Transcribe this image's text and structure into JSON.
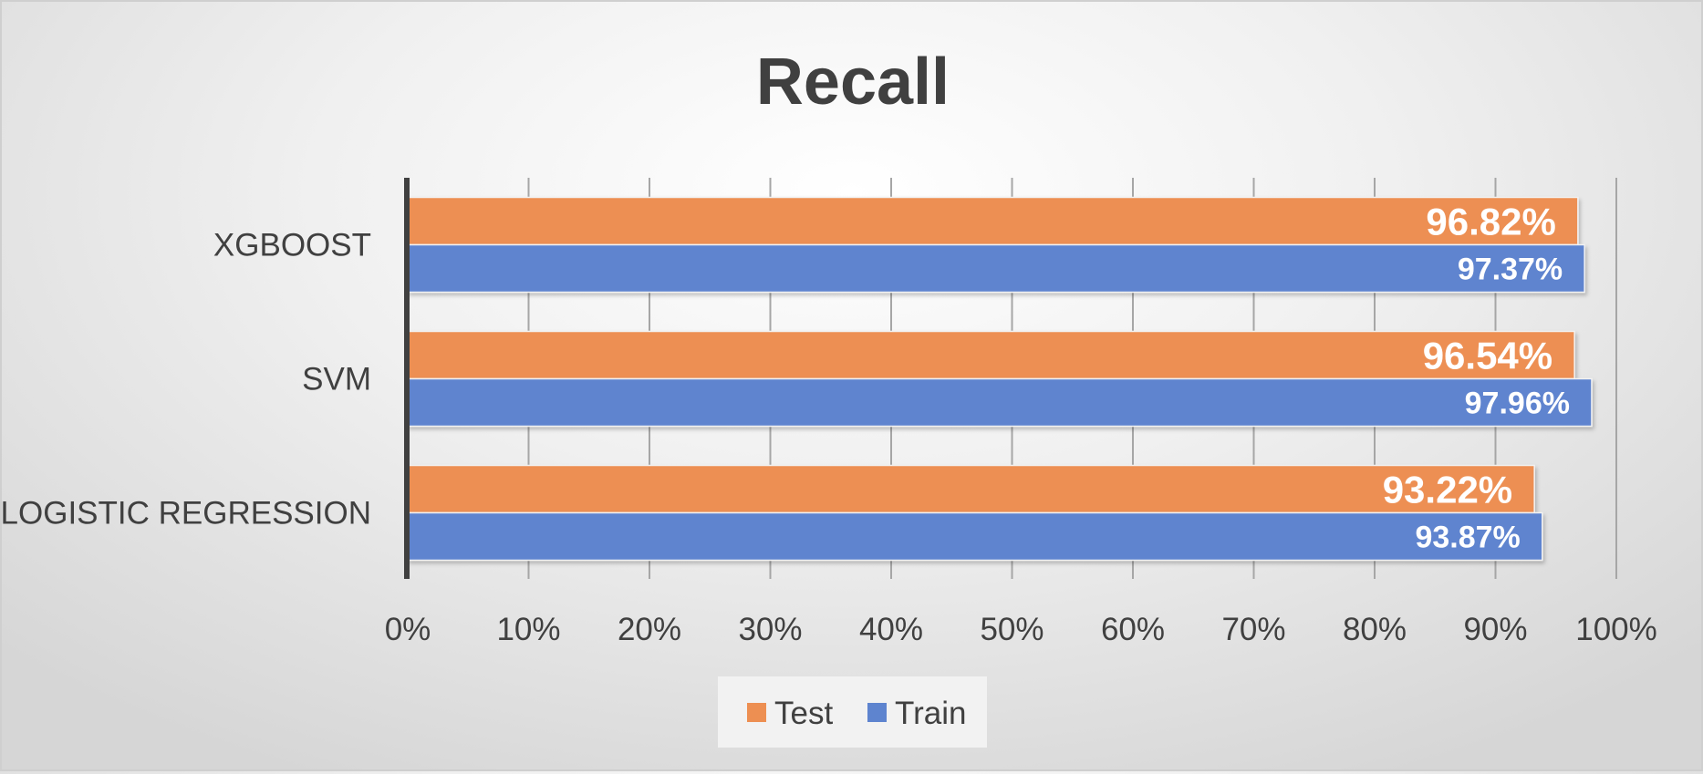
{
  "chart_data": {
    "type": "bar",
    "orientation": "horizontal",
    "title": "Recall",
    "categories": [
      "XGBOOST",
      "SVM",
      "LOGISTIC REGRESSION"
    ],
    "series": [
      {
        "name": "Test",
        "color": "#ed8f52",
        "values": [
          96.82,
          96.54,
          93.22
        ],
        "labels": [
          "96.82%",
          "96.54%",
          "93.22%"
        ]
      },
      {
        "name": "Train",
        "color": "#5e84cf",
        "values": [
          97.37,
          97.96,
          93.87
        ],
        "labels": [
          "97.37%",
          "97.96%",
          "93.87%"
        ]
      }
    ],
    "xlim": [
      0,
      100
    ],
    "x_ticks": [
      0,
      10,
      20,
      30,
      40,
      50,
      60,
      70,
      80,
      90,
      100
    ],
    "x_tick_labels": [
      "0%",
      "10%",
      "20%",
      "30%",
      "40%",
      "50%",
      "60%",
      "70%",
      "80%",
      "90%",
      "100%"
    ],
    "grid": true,
    "legend_position": "bottom"
  }
}
